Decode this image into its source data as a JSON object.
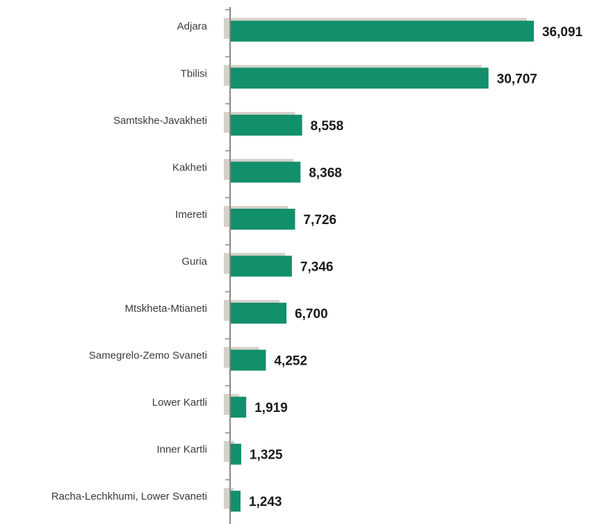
{
  "chart_data": {
    "type": "barh",
    "categories": [
      "Adjara",
      "Tbilisi",
      "Samtskhe-Javakheti",
      "Kakheti",
      "Imereti",
      "Guria",
      "Mtskheta-Mtianeti",
      "Samegrelo-Zemo Svaneti",
      "Lower Kartli",
      "Inner Kartli",
      "Racha-Lechkhumi, Lower Svaneti"
    ],
    "values": [
      36091,
      30707,
      8558,
      8368,
      7726,
      7346,
      6700,
      4252,
      1919,
      1325,
      1243
    ],
    "value_labels": [
      "36,091",
      "30,707",
      "8,558",
      "8,368",
      "7,726",
      "7,346",
      "6,700",
      "4,252",
      "1,919",
      "1,325",
      "1,243"
    ],
    "color": "#128f6b",
    "shadow_color": "#d4d1c9",
    "xlim": [
      0,
      37000
    ]
  }
}
